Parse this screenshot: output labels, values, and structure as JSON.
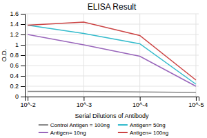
{
  "chart_data": {
    "type": "line",
    "title": "ELISA Result",
    "x_label": "Serial Dilutions of Antibody",
    "y_label": "O.D.",
    "categories": [
      "10^-2",
      "10^-3",
      "10^-4",
      "10^-5"
    ],
    "series": [
      {
        "name": "Control Antigen = 100ng",
        "color": "#888888",
        "values": [
          0.1,
          0.1,
          0.09,
          0.08
        ]
      },
      {
        "name": "Antigen= 10ng",
        "color": "#9966bb",
        "values": [
          1.2,
          1.0,
          0.78,
          0.2
        ]
      },
      {
        "name": "Antigen= 50ng",
        "color": "#33bbcc",
        "values": [
          1.38,
          1.22,
          1.02,
          0.24
        ]
      },
      {
        "name": "Antigen= 100ng",
        "color": "#cc4444",
        "values": [
          1.38,
          1.44,
          1.18,
          0.32
        ]
      }
    ],
    "ylim": [
      0,
      1.6
    ],
    "yticks": [
      0,
      0.2,
      0.4,
      0.6,
      0.8,
      1,
      1.2,
      1.4,
      1.6
    ],
    "grid": true,
    "legend": "bottom"
  }
}
